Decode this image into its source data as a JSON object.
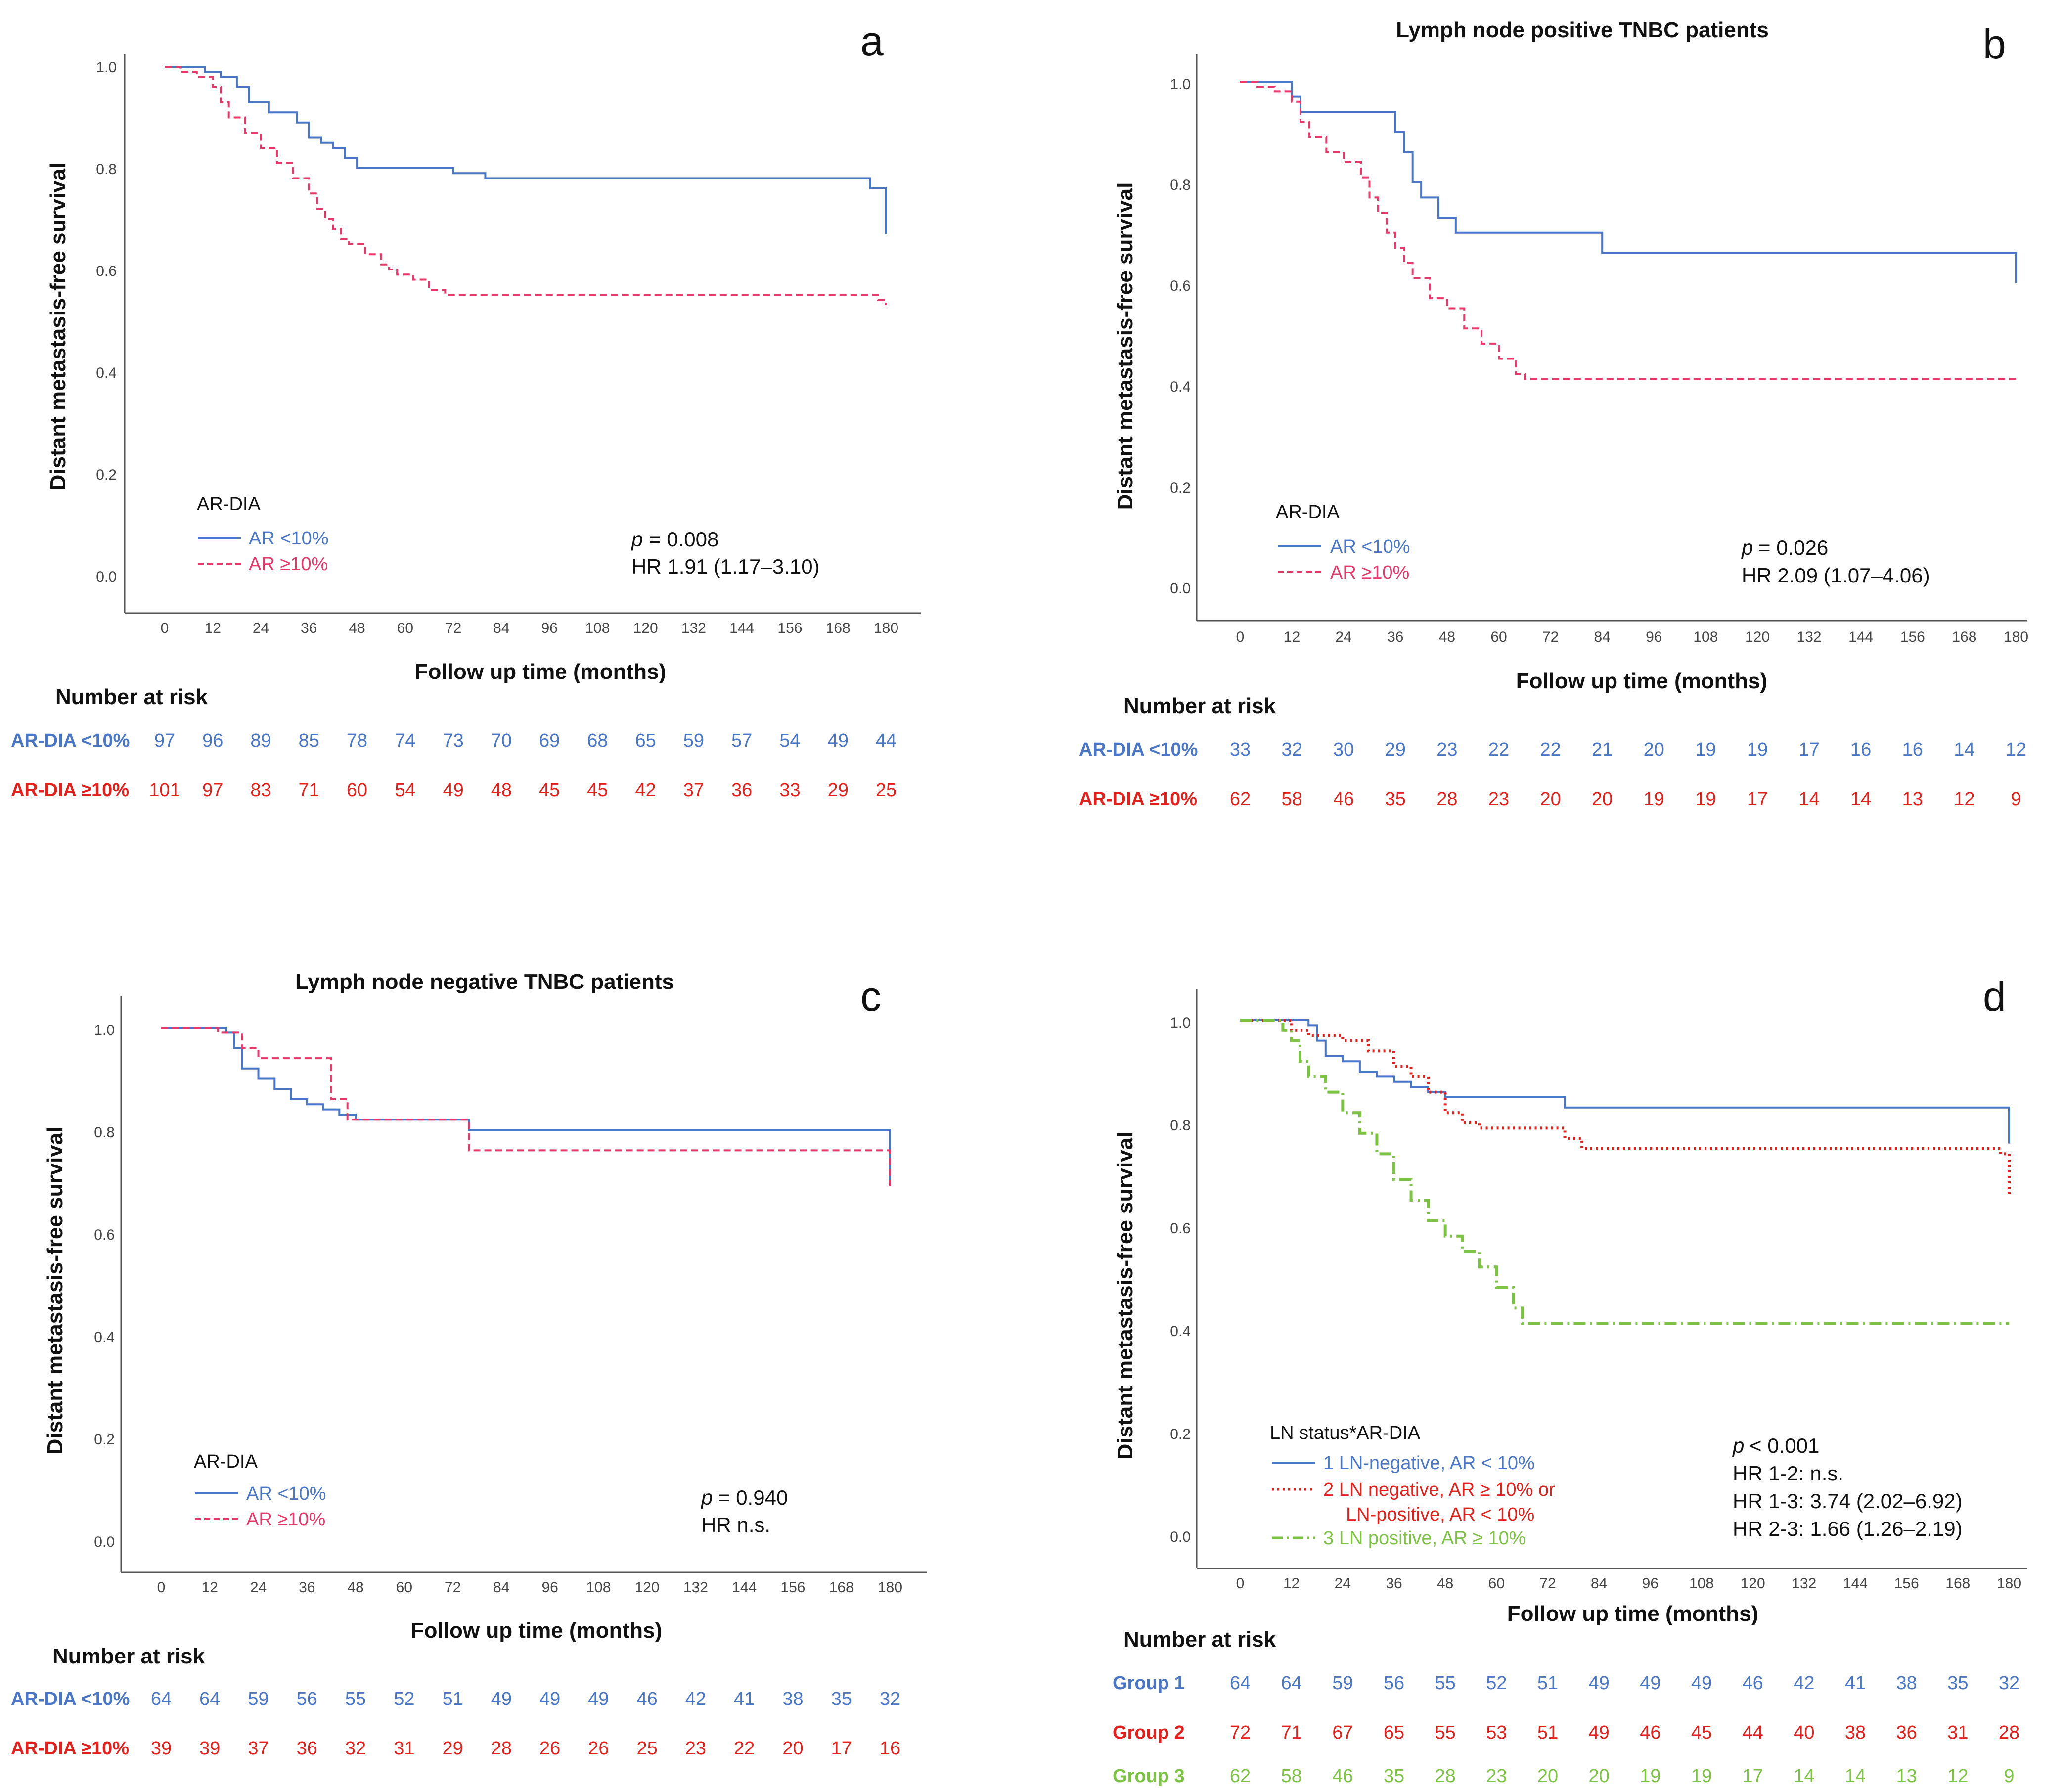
{
  "colors": {
    "blue": "#4a76c7",
    "pink": "#e8386a",
    "red": "#e3201b",
    "green": "#7cc243",
    "axis": "#555555"
  },
  "chart_data": [
    {
      "type": "line",
      "letter": "a",
      "title": "",
      "xlabel": "Follow up time (months)",
      "ylabel": "Distant metastasis-free survival",
      "xlim": [
        0,
        180
      ],
      "ylim": [
        0,
        1
      ],
      "xticks": [
        "0",
        "12",
        "24",
        "36",
        "48",
        "60",
        "72",
        "84",
        "96",
        "108",
        "120",
        "132",
        "144",
        "156",
        "168",
        "180"
      ],
      "yticks": [
        "0.0",
        "0.2",
        "0.4",
        "0.6",
        "0.8",
        "1.0"
      ],
      "legend": {
        "title": "AR-DIA",
        "entries": [
          "AR <10%",
          "AR ≥10%"
        ]
      },
      "stats": [
        "= 0.008",
        "HR 1.91 (1.17–3.10)"
      ],
      "p_label": "p",
      "series": [
        {
          "name": "AR <10%",
          "color": "blue",
          "dash": "solid",
          "x": [
            0,
            10,
            14,
            18,
            21,
            26,
            33,
            36,
            39,
            42,
            45,
            48,
            52,
            56,
            60,
            72,
            80,
            176,
            180
          ],
          "y": [
            1.0,
            0.99,
            0.98,
            0.96,
            0.93,
            0.91,
            0.89,
            0.86,
            0.85,
            0.84,
            0.82,
            0.8,
            0.8,
            0.8,
            0.8,
            0.79,
            0.78,
            0.76,
            0.67
          ]
        },
        {
          "name": "AR ≥10%",
          "color": "pink",
          "dash": "dashed",
          "x": [
            0,
            4,
            8,
            12,
            14,
            16,
            20,
            24,
            28,
            32,
            36,
            38,
            40,
            42,
            44,
            46,
            50,
            54,
            56,
            58,
            62,
            66,
            70,
            74,
            178,
            180
          ],
          "y": [
            1.0,
            0.99,
            0.98,
            0.96,
            0.93,
            0.9,
            0.87,
            0.84,
            0.81,
            0.78,
            0.75,
            0.72,
            0.7,
            0.68,
            0.66,
            0.65,
            0.63,
            0.61,
            0.6,
            0.59,
            0.58,
            0.56,
            0.55,
            0.55,
            0.54,
            0.53
          ]
        }
      ],
      "risk": {
        "heading": "Number at risk",
        "rows": [
          {
            "label": "AR-DIA <10%",
            "color": "blue",
            "values": [
              "97",
              "96",
              "89",
              "85",
              "78",
              "74",
              "73",
              "70",
              "69",
              "68",
              "65",
              "59",
              "57",
              "54",
              "49",
              "44"
            ]
          },
          {
            "label": "AR-DIA ≥10%",
            "color": "red",
            "values": [
              "101",
              "97",
              "83",
              "71",
              "60",
              "54",
              "49",
              "48",
              "45",
              "45",
              "42",
              "37",
              "36",
              "33",
              "29",
              "25"
            ]
          }
        ]
      }
    },
    {
      "type": "line",
      "letter": "b",
      "title": "Lymph node positive TNBC patients",
      "xlabel": "Follow up time (months)",
      "ylabel": "Distant metastasis-free survival",
      "xlim": [
        0,
        180
      ],
      "ylim": [
        0,
        1
      ],
      "xticks": [
        "0",
        "12",
        "24",
        "36",
        "48",
        "60",
        "72",
        "84",
        "96",
        "108",
        "120",
        "132",
        "144",
        "156",
        "168",
        "180"
      ],
      "yticks": [
        "0.0",
        "0.2",
        "0.4",
        "0.6",
        "0.8",
        "1.0"
      ],
      "legend": {
        "title": "AR-DIA",
        "entries": [
          "AR <10%",
          "AR ≥10%"
        ]
      },
      "stats": [
        "= 0.026",
        "HR 2.09 (1.07–4.06)"
      ],
      "p_label": "p",
      "series": [
        {
          "name": "AR <10%",
          "color": "blue",
          "dash": "solid",
          "x": [
            0,
            12,
            14,
            34,
            36,
            38,
            40,
            42,
            46,
            50,
            80,
            84,
            176,
            180
          ],
          "y": [
            1.0,
            0.97,
            0.94,
            0.94,
            0.9,
            0.86,
            0.8,
            0.77,
            0.73,
            0.7,
            0.7,
            0.66,
            0.66,
            0.6
          ]
        },
        {
          "name": "AR ≥10%",
          "color": "pink",
          "dash": "dashed",
          "x": [
            0,
            4,
            8,
            12,
            14,
            16,
            20,
            24,
            28,
            30,
            32,
            34,
            36,
            38,
            40,
            44,
            48,
            52,
            56,
            60,
            64,
            66,
            180
          ],
          "y": [
            1.0,
            0.99,
            0.98,
            0.96,
            0.92,
            0.89,
            0.86,
            0.84,
            0.81,
            0.77,
            0.74,
            0.7,
            0.67,
            0.64,
            0.61,
            0.57,
            0.55,
            0.51,
            0.48,
            0.45,
            0.42,
            0.41,
            0.41
          ]
        }
      ],
      "risk": {
        "heading": "Number at risk",
        "rows": [
          {
            "label": "AR-DIA <10%",
            "color": "blue",
            "values": [
              "33",
              "32",
              "30",
              "29",
              "23",
              "22",
              "22",
              "21",
              "20",
              "19",
              "19",
              "17",
              "16",
              "16",
              "14",
              "12"
            ]
          },
          {
            "label": "AR-DIA ≥10%",
            "color": "red",
            "values": [
              "62",
              "58",
              "46",
              "35",
              "28",
              "23",
              "20",
              "20",
              "19",
              "19",
              "17",
              "14",
              "14",
              "13",
              "12",
              "9"
            ]
          }
        ]
      }
    },
    {
      "type": "line",
      "letter": "c",
      "title": "Lymph node negative TNBC patients",
      "xlabel": "Follow up time (months)",
      "ylabel": "Distant metastasis-free survival",
      "xlim": [
        0,
        180
      ],
      "ylim": [
        0,
        1
      ],
      "xticks": [
        "0",
        "12",
        "24",
        "36",
        "48",
        "60",
        "72",
        "84",
        "96",
        "108",
        "120",
        "132",
        "144",
        "156",
        "168",
        "180"
      ],
      "yticks": [
        "0.0",
        "0.2",
        "0.4",
        "0.6",
        "0.8",
        "1.0"
      ],
      "legend": {
        "title": "AR-DIA",
        "entries": [
          "AR <10%",
          "AR ≥10%"
        ]
      },
      "stats": [
        "= 0.940",
        "HR n.s."
      ],
      "p_label": "p",
      "series": [
        {
          "name": "AR <10%",
          "color": "blue",
          "dash": "solid",
          "x": [
            0,
            16,
            18,
            20,
            24,
            28,
            32,
            36,
            40,
            44,
            48,
            60,
            76,
            178,
            180
          ],
          "y": [
            1.0,
            0.99,
            0.96,
            0.92,
            0.9,
            0.88,
            0.86,
            0.85,
            0.84,
            0.83,
            0.82,
            0.82,
            0.8,
            0.8,
            0.7
          ]
        },
        {
          "name": "AR ≥10%",
          "color": "pink",
          "dash": "dashed",
          "x": [
            0,
            14,
            20,
            24,
            34,
            42,
            46,
            72,
            76,
            176,
            180
          ],
          "y": [
            1.0,
            0.99,
            0.96,
            0.94,
            0.94,
            0.86,
            0.82,
            0.82,
            0.76,
            0.76,
            0.69
          ]
        }
      ],
      "risk": {
        "heading": "Number at risk",
        "rows": [
          {
            "label": "AR-DIA <10%",
            "color": "blue",
            "values": [
              "64",
              "64",
              "59",
              "56",
              "55",
              "52",
              "51",
              "49",
              "49",
              "49",
              "46",
              "42",
              "41",
              "38",
              "35",
              "32"
            ]
          },
          {
            "label": "AR-DIA ≥10%",
            "color": "red",
            "values": [
              "39",
              "39",
              "37",
              "36",
              "32",
              "31",
              "29",
              "28",
              "26",
              "26",
              "25",
              "23",
              "22",
              "20",
              "17",
              "16"
            ]
          }
        ]
      }
    },
    {
      "type": "line",
      "letter": "d",
      "title": "",
      "xlabel": "Follow up time (months)",
      "ylabel": "Distant metastasis-free survival",
      "xlim": [
        0,
        180
      ],
      "ylim": [
        0,
        1
      ],
      "xticks": [
        "0",
        "12",
        "24",
        "36",
        "48",
        "60",
        "72",
        "84",
        "96",
        "108",
        "120",
        "132",
        "144",
        "156",
        "168",
        "180"
      ],
      "yticks": [
        "0.0",
        "0.2",
        "0.4",
        "0.6",
        "0.8",
        "1.0"
      ],
      "legend": {
        "title": "LN status*AR-DIA",
        "entries": [
          "1 LN-negative, AR < 10%",
          "2 LN negative, AR ≥ 10% or",
          "LN-positive, AR < 10%",
          "3 LN positive, AR ≥ 10%"
        ]
      },
      "stats": [
        "< 0.001",
        "HR 1-2: n.s.",
        "HR 1-3: 3.74 (2.02–6.92)",
        "HR 2-3: 1.66 (1.26–2.19)"
      ],
      "p_label": "p",
      "series": [
        {
          "name": "1 LN-negative, AR < 10%",
          "color": "blue",
          "dash": "solid",
          "x": [
            0,
            16,
            18,
            20,
            24,
            28,
            32,
            36,
            40,
            44,
            48,
            60,
            76,
            178,
            180
          ],
          "y": [
            1.0,
            0.99,
            0.96,
            0.93,
            0.92,
            0.9,
            0.89,
            0.88,
            0.87,
            0.86,
            0.85,
            0.85,
            0.83,
            0.83,
            0.76
          ]
        },
        {
          "name": "2 LN negative, AR ≥ 10% or LN-positive, AR < 10%",
          "color": "red",
          "dash": "dotted",
          "x": [
            0,
            12,
            16,
            24,
            30,
            36,
            40,
            44,
            48,
            52,
            56,
            60,
            72,
            76,
            80,
            178,
            180
          ],
          "y": [
            1.0,
            0.98,
            0.97,
            0.96,
            0.94,
            0.91,
            0.89,
            0.86,
            0.82,
            0.8,
            0.79,
            0.79,
            0.79,
            0.77,
            0.75,
            0.74,
            0.66
          ]
        },
        {
          "name": "3 LN positive, AR ≥ 10%",
          "color": "green",
          "dash": "dashdot",
          "x": [
            0,
            10,
            12,
            14,
            16,
            20,
            24,
            28,
            32,
            36,
            40,
            44,
            48,
            52,
            56,
            60,
            64,
            66,
            180
          ],
          "y": [
            1.0,
            0.98,
            0.96,
            0.92,
            0.89,
            0.86,
            0.82,
            0.78,
            0.74,
            0.69,
            0.65,
            0.61,
            0.58,
            0.55,
            0.52,
            0.48,
            0.44,
            0.41,
            0.41
          ]
        }
      ],
      "risk": {
        "heading": "Number at risk",
        "rows": [
          {
            "label": "Group 1",
            "color": "blue",
            "values": [
              "64",
              "64",
              "59",
              "56",
              "55",
              "52",
              "51",
              "49",
              "49",
              "49",
              "46",
              "42",
              "41",
              "38",
              "35",
              "32"
            ]
          },
          {
            "label": "Group 2",
            "color": "red",
            "values": [
              "72",
              "71",
              "67",
              "65",
              "55",
              "53",
              "51",
              "49",
              "46",
              "45",
              "44",
              "40",
              "38",
              "36",
              "31",
              "28"
            ]
          },
          {
            "label": "Group 3",
            "color": "green",
            "values": [
              "62",
              "58",
              "46",
              "35",
              "28",
              "23",
              "20",
              "20",
              "19",
              "19",
              "17",
              "14",
              "14",
              "13",
              "12",
              "9"
            ]
          }
        ]
      }
    }
  ]
}
